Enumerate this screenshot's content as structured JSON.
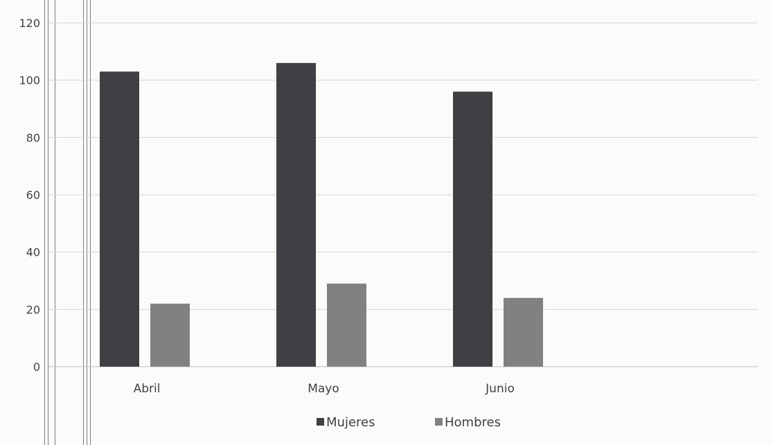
{
  "chart_data": {
    "type": "bar",
    "categories": [
      "Abril",
      "Mayo",
      "Junio"
    ],
    "series": [
      {
        "name": "Mujeres",
        "values": [
          103,
          106,
          96
        ],
        "color": "#3f3f44"
      },
      {
        "name": "Hombres",
        "values": [
          22,
          29,
          24
        ],
        "color": "#818183"
      }
    ],
    "title": "",
    "xlabel": "",
    "ylabel": "",
    "ylim": [
      0,
      120
    ],
    "yticks": [
      0,
      20,
      40,
      60,
      80,
      100,
      120
    ],
    "grid": true,
    "legend_position": "bottom"
  }
}
